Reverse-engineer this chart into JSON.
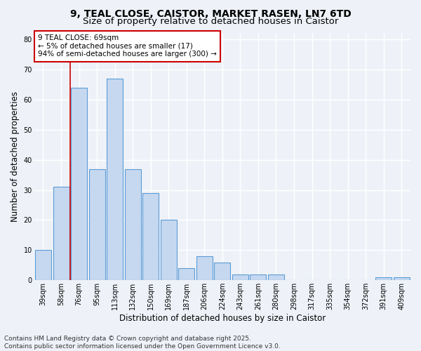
{
  "title1": "9, TEAL CLOSE, CAISTOR, MARKET RASEN, LN7 6TD",
  "title2": "Size of property relative to detached houses in Caistor",
  "xlabel": "Distribution of detached houses by size in Caistor",
  "ylabel": "Number of detached properties",
  "categories": [
    "39sqm",
    "58sqm",
    "76sqm",
    "95sqm",
    "113sqm",
    "132sqm",
    "150sqm",
    "169sqm",
    "187sqm",
    "206sqm",
    "224sqm",
    "243sqm",
    "261sqm",
    "280sqm",
    "298sqm",
    "317sqm",
    "335sqm",
    "354sqm",
    "372sqm",
    "391sqm",
    "409sqm"
  ],
  "values": [
    10,
    31,
    64,
    37,
    67,
    37,
    29,
    20,
    4,
    8,
    6,
    2,
    2,
    2,
    0,
    0,
    0,
    0,
    0,
    1,
    1
  ],
  "bar_color": "#c5d8f0",
  "bar_edge_color": "#5b9bd5",
  "red_line_x": 1.5,
  "annotation_text": "9 TEAL CLOSE: 69sqm\n← 5% of detached houses are smaller (17)\n94% of semi-detached houses are larger (300) →",
  "annotation_box_facecolor": "#ffffff",
  "annotation_box_edgecolor": "#cc0000",
  "ylim": [
    0,
    82
  ],
  "yticks": [
    0,
    10,
    20,
    30,
    40,
    50,
    60,
    70,
    80
  ],
  "footer": "Contains HM Land Registry data © Crown copyright and database right 2025.\nContains public sector information licensed under the Open Government Licence v3.0.",
  "bg_color": "#eef2f8",
  "plot_bg_color": "#eef2f8",
  "grid_color": "#ffffff",
  "title_fontsize": 10,
  "subtitle_fontsize": 9.5,
  "axis_label_fontsize": 8.5,
  "tick_fontsize": 7,
  "footer_fontsize": 6.5,
  "ann_fontsize": 7.5
}
